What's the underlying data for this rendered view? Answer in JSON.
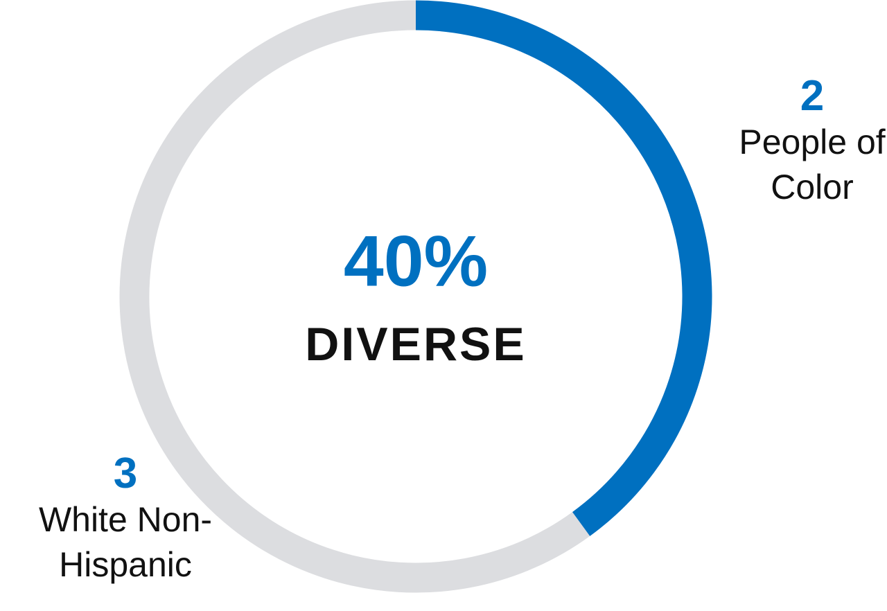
{
  "chart_data": {
    "type": "donut",
    "categories": [
      "People of Color",
      "White Non-Hispanic"
    ],
    "values": [
      2,
      3
    ],
    "colors": [
      "#0070c0",
      "#dcdde0"
    ],
    "annotations": [
      "40%",
      "DIVERSE"
    ]
  }
}
